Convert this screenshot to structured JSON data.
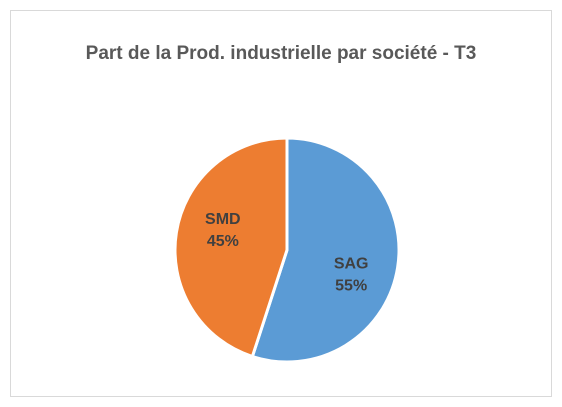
{
  "chart_data": {
    "type": "pie",
    "title": "Part de la Prod. industrielle par société - T3",
    "categories": [
      "SAG",
      "SMD"
    ],
    "values": [
      55,
      45
    ],
    "value_labels": [
      "55%",
      "45%"
    ],
    "colors": [
      "#5b9bd5",
      "#ed7d31"
    ]
  }
}
